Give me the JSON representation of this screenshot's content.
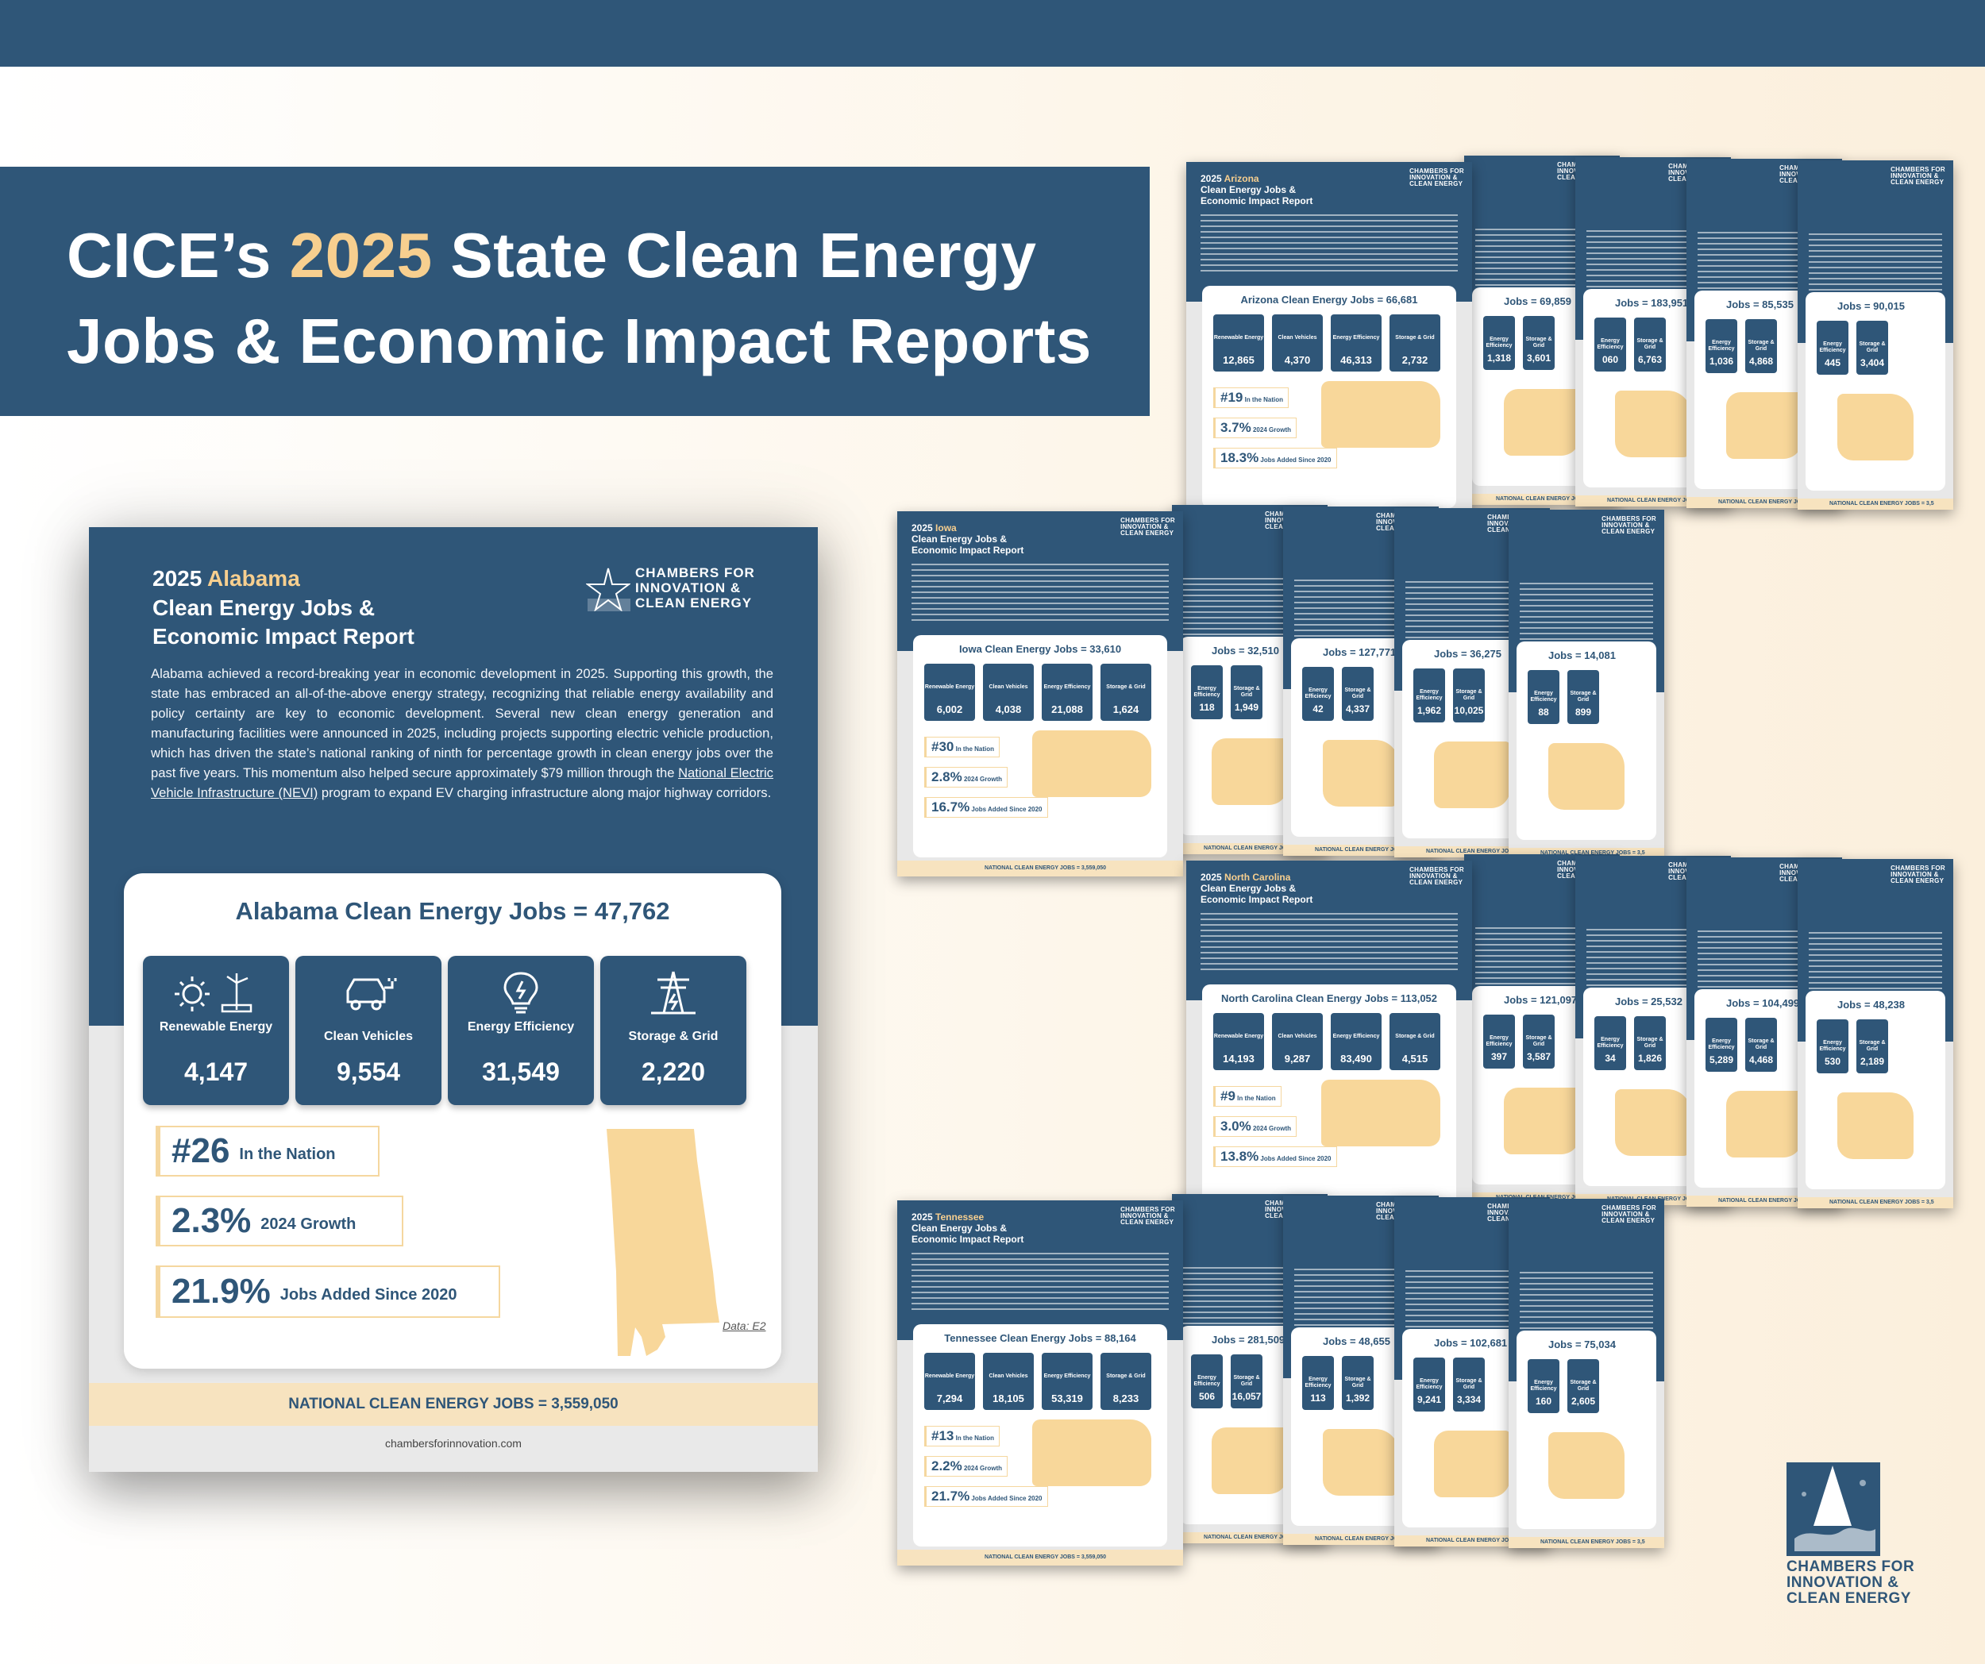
{
  "banner": {
    "line1_pre": "CICE’s ",
    "line1_year": "2025",
    "line1_post": " State Clean Energy",
    "line2": "Jobs & Economic Impact Reports"
  },
  "logo": {
    "line1": "CHAMBERS FOR",
    "line2": "INNOVATION &",
    "line3": "CLEAN ENERGY"
  },
  "report": {
    "year": "2025",
    "state": "Alabama",
    "subtitle1": "Clean Energy Jobs &",
    "subtitle2": "Economic Impact Report",
    "paragraph_pre": "Alabama achieved a record-breaking year in economic development in 2025. Supporting this growth, the state has embraced an all-of-the-above energy strategy, recognizing that reliable energy availability and policy certainty are key to economic development. Several new clean energy generation and manufacturing facilities were announced in 2025, including projects supporting electric vehicle production, which has driven the state’s national ranking of ninth for percentage growth in clean energy jobs over the past five years. This momentum also helped secure approximately $79 million through the ",
    "paragraph_link": "National Electric Vehicle Infrastructure (NEVI)",
    "paragraph_post": " program to expand EV charging infrastructure along major highway corridors.",
    "card_title": "Alabama Clean Energy Jobs = 47,762",
    "tiles": [
      {
        "label": "Renewable Energy",
        "value": "4,147",
        "icon": "sun-wind-icon"
      },
      {
        "label": "Clean Vehicles",
        "value": "9,554",
        "icon": "ev-car-icon"
      },
      {
        "label": "Energy Efficiency",
        "value": "31,549",
        "icon": "lightbulb-icon"
      },
      {
        "label": "Storage & Grid",
        "value": "2,220",
        "icon": "transmission-tower-icon"
      }
    ],
    "rank_value": "#26",
    "rank_label": "In the Nation",
    "growth_value": "2.3%",
    "growth_label": "2024 Growth",
    "added_value": "21.9%",
    "added_label": "Jobs Added Since 2020",
    "data_source": "Data: E2",
    "national": "NATIONAL CLEAN ENERGY JOBS = 3,559,050",
    "website": "chambersforinnovation.com"
  },
  "rows": [
    {
      "lead": {
        "year": "2025",
        "state": "Arizona",
        "title": "Arizona Clean Energy Jobs = 66,681",
        "values": [
          "12,865",
          "4,370",
          "46,313",
          "2,732"
        ],
        "rank": "#19",
        "growth": "3.7%",
        "added": "18.3%"
      },
      "minis": [
        {
          "title": "Jobs = 69,859",
          "v1": "1,318",
          "v2": "3,601"
        },
        {
          "title": "Jobs = 183,951",
          "v1": "060",
          "v2": "6,763"
        },
        {
          "title": "Jobs = 85,535",
          "v1": "1,036",
          "v2": "4,868"
        },
        {
          "title": "Jobs = 90,015",
          "v1": "445",
          "v2": "3,404"
        }
      ]
    },
    {
      "lead": {
        "year": "2025",
        "state": "Iowa",
        "title": "Iowa Clean Energy Jobs = 33,610",
        "values": [
          "6,002",
          "4,038",
          "21,088",
          "1,624"
        ],
        "rank": "#30",
        "growth": "2.8%",
        "added": "16.7%"
      },
      "minis": [
        {
          "title": "Jobs = 32,510",
          "v1": "118",
          "v2": "1,949"
        },
        {
          "title": "Jobs = 127,771",
          "v1": "42",
          "v2": "4,337"
        },
        {
          "title": "Jobs = 36,275",
          "v1": "1,962",
          "v2": "10,025"
        },
        {
          "title": "Jobs = 14,081",
          "v1": "88",
          "v2": "899"
        }
      ]
    },
    {
      "lead": {
        "year": "2025",
        "state": "North Carolina",
        "title": "North Carolina Clean Energy Jobs = 113,052",
        "values": [
          "14,193",
          "9,287",
          "83,490",
          "4,515"
        ],
        "rank": "#9",
        "growth": "3.0%",
        "added": "13.8%"
      },
      "minis": [
        {
          "title": "Jobs = 121,097",
          "v1": "397",
          "v2": "3,587"
        },
        {
          "title": "Jobs = 25,532",
          "v1": "34",
          "v2": "1,826"
        },
        {
          "title": "Jobs = 104,499",
          "v1": "5,289",
          "v2": "4,468"
        },
        {
          "title": "Jobs = 48,238",
          "v1": "530",
          "v2": "2,189"
        }
      ]
    },
    {
      "lead": {
        "year": "2025",
        "state": "Tennessee",
        "title": "Tennessee Clean Energy Jobs = 88,164",
        "values": [
          "7,294",
          "18,105",
          "53,319",
          "8,233"
        ],
        "rank": "#13",
        "growth": "2.2%",
        "added": "21.7%"
      },
      "minis": [
        {
          "title": "Jobs = 281,509",
          "v1": "506",
          "v2": "16,057"
        },
        {
          "title": "Jobs = 48,655",
          "v1": "113",
          "v2": "1,392"
        },
        {
          "title": "Jobs = 102,681",
          "v1": "9,241",
          "v2": "3,334"
        },
        {
          "title": "Jobs = 75,034",
          "v1": "160",
          "v2": "2,605"
        }
      ]
    }
  ],
  "mini_labels": {
    "renewable": "Renewable Energy",
    "vehicles": "Clean Vehicles",
    "efficiency": "Energy Efficiency",
    "storage": "Storage & Grid",
    "rank": "In the Nation",
    "growth": "2024 Growth",
    "added": "Jobs Added Since 2020",
    "national": "NATIONAL CLEAN ENERGY JOBS = 3,559,050",
    "website": "chambersforinnovation.com"
  },
  "colors": {
    "navy": "#2f5678",
    "gold": "#f7cf8f",
    "sand": "#f8d79a",
    "cream": "#f7e3bf"
  }
}
